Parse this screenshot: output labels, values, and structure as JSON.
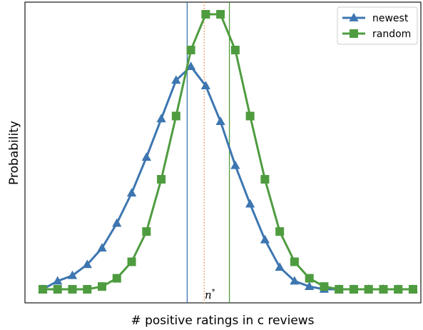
{
  "chart_data": {
    "type": "line",
    "title": "",
    "xlabel": "# positive ratings in c reviews",
    "ylabel": "Probability",
    "xlim": [
      -1,
      26
    ],
    "ylim": [
      0,
      1.05
    ],
    "x_ticks_visible": false,
    "y_ticks_visible": false,
    "grid": false,
    "legend_position": "top-right",
    "x": [
      0,
      1,
      2,
      3,
      4,
      5,
      6,
      7,
      8,
      9,
      10,
      11,
      12,
      13,
      14,
      15,
      16,
      17,
      18,
      19,
      20,
      21,
      22,
      23,
      24,
      25
    ],
    "series": [
      {
        "name": "newest",
        "color": "#3d76b0",
        "marker": "triangle",
        "values": [
          0.0,
          0.03,
          0.05,
          0.09,
          0.15,
          0.24,
          0.35,
          0.48,
          0.62,
          0.76,
          0.81,
          0.74,
          0.61,
          0.45,
          0.31,
          0.18,
          0.08,
          0.03,
          0.01,
          0.0,
          0.0,
          0.0,
          0.0,
          0.0,
          0.0,
          0.0
        ]
      },
      {
        "name": "random",
        "color": "#4e9c3f",
        "marker": "square",
        "values": [
          0.0,
          0.0,
          0.0,
          0.0,
          0.01,
          0.04,
          0.1,
          0.21,
          0.4,
          0.63,
          0.87,
          1.0,
          1.0,
          0.87,
          0.63,
          0.4,
          0.21,
          0.1,
          0.04,
          0.01,
          0.0,
          0.0,
          0.0,
          0.0,
          0.0,
          0.0
        ]
      }
    ],
    "vertical_lines": [
      {
        "x": 9.75,
        "color": "#3d76b0",
        "style": "solid"
      },
      {
        "x": 10.9,
        "color": "#f08a4b",
        "style": "dotted",
        "label": "n*"
      },
      {
        "x": 12.6,
        "color": "#4e9c3f",
        "style": "solid"
      }
    ]
  },
  "annotations": {
    "n_star_base": "n",
    "n_star_sup": "*"
  }
}
